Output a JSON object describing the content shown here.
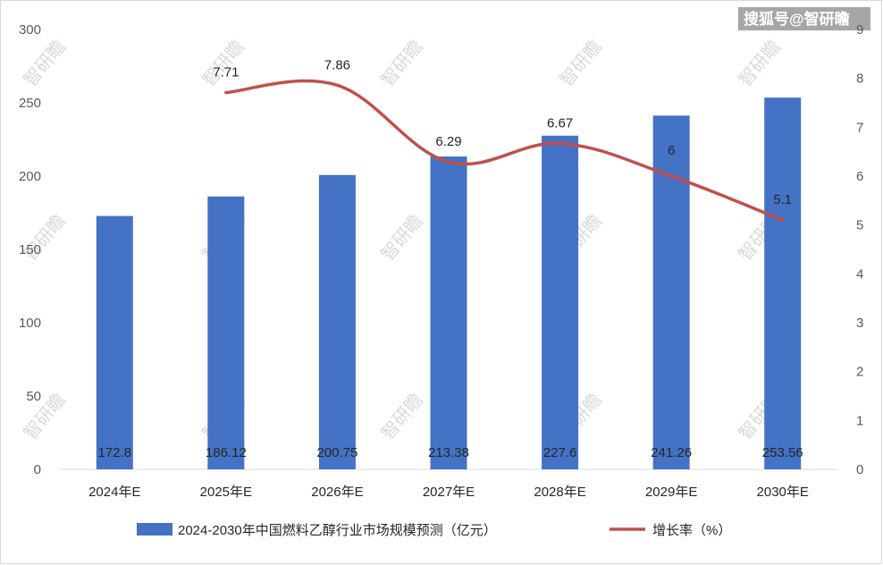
{
  "chart_data": {
    "type": "bar",
    "categories": [
      "2024年E",
      "2025年E",
      "2026年E",
      "2027年E",
      "2028年E",
      "2029年E",
      "2030年E"
    ],
    "series": [
      {
        "name": "2024-2030年中国燃料乙醇行业市场规模预测（亿元）",
        "type": "bar",
        "axis": "left",
        "color": "#4472c4",
        "values": [
          172.8,
          186.12,
          200.75,
          213.38,
          227.6,
          241.26,
          253.56
        ],
        "labels": [
          "172.8",
          "186.12",
          "200.75",
          "213.38",
          "227.6",
          "241.26",
          "253.56"
        ]
      },
      {
        "name": "增长率（%）",
        "type": "line",
        "axis": "right",
        "color": "#c0504d",
        "values": [
          null,
          7.71,
          7.86,
          6.29,
          6.67,
          6.0,
          5.1
        ],
        "labels": [
          "",
          "7.71",
          "7.86",
          "6.29",
          "6.67",
          "6",
          "5.1"
        ]
      }
    ],
    "y_left": {
      "min": 0,
      "max": 300,
      "ticks": [
        "0",
        "50",
        "100",
        "150",
        "200",
        "250",
        "300"
      ]
    },
    "y_right": {
      "min": 0,
      "max": 9,
      "ticks": [
        "0",
        "1",
        "2",
        "3",
        "4",
        "5",
        "6",
        "7",
        "8",
        "9"
      ]
    },
    "grid": false,
    "legend_position": "bottom"
  },
  "watermark": {
    "brand_text": "搜狐号@智研瞻",
    "tile_text": "智研瞻"
  }
}
